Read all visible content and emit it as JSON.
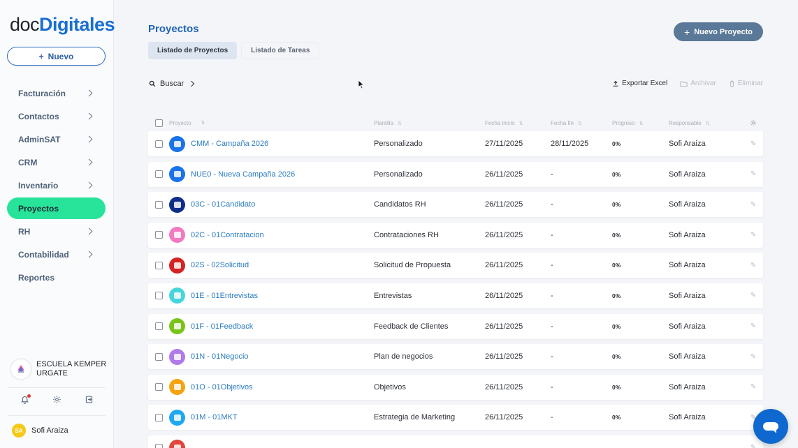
{
  "brand": {
    "part1": "doc",
    "part2": "Digitales"
  },
  "sidebar": {
    "new_button": {
      "icon": "plus-icon",
      "label": "Nuevo"
    },
    "items": [
      {
        "label": "Facturación",
        "has_submenu": true,
        "active": false
      },
      {
        "label": "Contactos",
        "has_submenu": true,
        "active": false
      },
      {
        "label": "AdminSAT",
        "has_submenu": true,
        "active": false
      },
      {
        "label": "CRM",
        "has_submenu": true,
        "active": false
      },
      {
        "label": "Inventario",
        "has_submenu": true,
        "active": false
      },
      {
        "label": "Proyectos",
        "has_submenu": false,
        "active": true
      },
      {
        "label": "RH",
        "has_submenu": true,
        "active": false
      },
      {
        "label": "Contabilidad",
        "has_submenu": true,
        "active": false
      },
      {
        "label": "Reportes",
        "has_submenu": false,
        "active": false
      }
    ],
    "organization": {
      "name_line1": "ESCUELA KEMPER",
      "name_line2": "URGATE"
    },
    "footer_icons": [
      "bell-icon",
      "gear-icon",
      "logout-icon"
    ],
    "user": {
      "initials": "SA",
      "name": "Sofi Araiza",
      "avatar_color": "#f5c918"
    }
  },
  "header": {
    "title": "Proyectos",
    "tabs": [
      {
        "label": "Listado de Proyectos",
        "active": true
      },
      {
        "label": "Listado de Tareas",
        "active": false
      }
    ],
    "new_project_button": "Nuevo Proyecto"
  },
  "toolbar": {
    "search_label": "Buscar",
    "export_label": "Exportar Excel",
    "archive_label": "Archivar",
    "delete_label": "Eliminar"
  },
  "table": {
    "columns": [
      "Proyecto",
      "Plantilla",
      "Fecha inicio",
      "Fecha fin",
      "Progreso",
      "Responsable"
    ],
    "rows": [
      {
        "name": "CMM - Campaña 2026",
        "template": "Personalizado",
        "start": "27/11/2025",
        "end": "28/11/2025",
        "progress": "0%",
        "owner": "Sofi Araiza",
        "icon_color": "#1a73e8"
      },
      {
        "name": "NUE0 - Nueva Campaña 2026",
        "template": "Personalizado",
        "start": "26/11/2025",
        "end": "-",
        "progress": "0%",
        "owner": "Sofi Araiza",
        "icon_color": "#1a73e8"
      },
      {
        "name": "03C - 01Candidato",
        "template": "Candidatos RH",
        "start": "26/11/2025",
        "end": "-",
        "progress": "0%",
        "owner": "Sofi Araiza",
        "icon_color": "#0d2f8a"
      },
      {
        "name": "02C - 01Contratacion",
        "template": "Contrataciones RH",
        "start": "26/11/2025",
        "end": "-",
        "progress": "0%",
        "owner": "Sofi Araiza",
        "icon_color": "#f27ac0"
      },
      {
        "name": "02S - 02Solicitud",
        "template": "Solicitud de Propuesta",
        "start": "26/11/2025",
        "end": "-",
        "progress": "0%",
        "owner": "Sofi Araiza",
        "icon_color": "#d42323"
      },
      {
        "name": "01E - 01Entrevistas",
        "template": "Entrevistas",
        "start": "26/11/2025",
        "end": "-",
        "progress": "0%",
        "owner": "Sofi Araiza",
        "icon_color": "#45d6dc"
      },
      {
        "name": "01F - 01Feedback",
        "template": "Feedback de Clientes",
        "start": "26/11/2025",
        "end": "-",
        "progress": "0%",
        "owner": "Sofi Araiza",
        "icon_color": "#7ac41a"
      },
      {
        "name": "01N - 01Negocio",
        "template": "Plan de negocios",
        "start": "26/11/2025",
        "end": "-",
        "progress": "0%",
        "owner": "Sofi Araiza",
        "icon_color": "#b07ae8"
      },
      {
        "name": "01O - 01Objetivos",
        "template": "Objetivos",
        "start": "26/11/2025",
        "end": "-",
        "progress": "0%",
        "owner": "Sofi Araiza",
        "icon_color": "#f5a30f"
      },
      {
        "name": "01M - 01MKT",
        "template": "Estrategia de Marketing",
        "start": "26/11/2025",
        "end": "-",
        "progress": "0%",
        "owner": "Sofi Araiza",
        "icon_color": "#1fa8f0"
      },
      {
        "name": "",
        "template": "",
        "start": "",
        "end": "",
        "progress": "",
        "owner": "",
        "icon_color": "#e2463a"
      }
    ]
  },
  "colors": {
    "accent": "#1f63b7",
    "active_nav": "#27e49a",
    "primary_button": "#5a7898",
    "chat_fab": "#0f68d0"
  }
}
